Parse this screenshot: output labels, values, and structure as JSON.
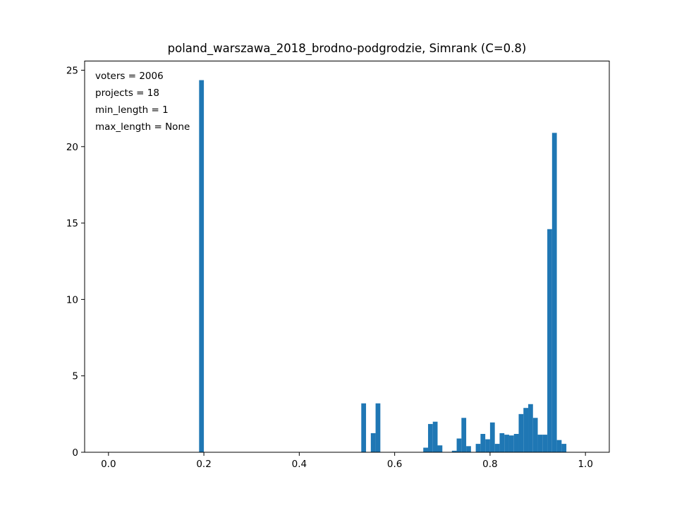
{
  "chart_data": {
    "type": "bar",
    "title": "poland_warszawa_2018_brodno-podgrodzie, Simrank (C=0.8)",
    "xlabel": "",
    "ylabel": "",
    "xlim": [
      -0.05,
      1.05
    ],
    "ylim": [
      0,
      25.6
    ],
    "bin_width": 0.01,
    "xticks": [
      0.0,
      0.2,
      0.4,
      0.6,
      0.8,
      1.0
    ],
    "xtick_labels": [
      "0.0",
      "0.2",
      "0.4",
      "0.6",
      "0.8",
      "1.0"
    ],
    "yticks": [
      0,
      5,
      10,
      15,
      20,
      25
    ],
    "ytick_labels": [
      "0",
      "5",
      "10",
      "15",
      "20",
      "25"
    ],
    "bar_color": "#1f77b4",
    "grid": false,
    "annotations": [
      "voters = 2006",
      "projects = 18",
      "min_length = 1",
      "max_length = None"
    ],
    "bins": [
      {
        "x": 0.19,
        "y": 24.35
      },
      {
        "x": 0.53,
        "y": 3.2
      },
      {
        "x": 0.55,
        "y": 1.25
      },
      {
        "x": 0.56,
        "y": 3.2
      },
      {
        "x": 0.66,
        "y": 0.3
      },
      {
        "x": 0.67,
        "y": 1.85
      },
      {
        "x": 0.68,
        "y": 2.0
      },
      {
        "x": 0.69,
        "y": 0.45
      },
      {
        "x": 0.72,
        "y": 0.1
      },
      {
        "x": 0.73,
        "y": 0.9
      },
      {
        "x": 0.74,
        "y": 2.25
      },
      {
        "x": 0.75,
        "y": 0.4
      },
      {
        "x": 0.77,
        "y": 0.55
      },
      {
        "x": 0.78,
        "y": 1.2
      },
      {
        "x": 0.79,
        "y": 0.85
      },
      {
        "x": 0.8,
        "y": 1.95
      },
      {
        "x": 0.81,
        "y": 0.55
      },
      {
        "x": 0.82,
        "y": 1.25
      },
      {
        "x": 0.83,
        "y": 1.15
      },
      {
        "x": 0.84,
        "y": 1.1
      },
      {
        "x": 0.85,
        "y": 1.2
      },
      {
        "x": 0.86,
        "y": 2.5
      },
      {
        "x": 0.87,
        "y": 2.9
      },
      {
        "x": 0.88,
        "y": 3.15
      },
      {
        "x": 0.89,
        "y": 2.25
      },
      {
        "x": 0.9,
        "y": 1.15
      },
      {
        "x": 0.91,
        "y": 1.15
      },
      {
        "x": 0.92,
        "y": 14.6
      },
      {
        "x": 0.93,
        "y": 20.9
      },
      {
        "x": 0.94,
        "y": 0.8
      },
      {
        "x": 0.95,
        "y": 0.55
      }
    ]
  }
}
